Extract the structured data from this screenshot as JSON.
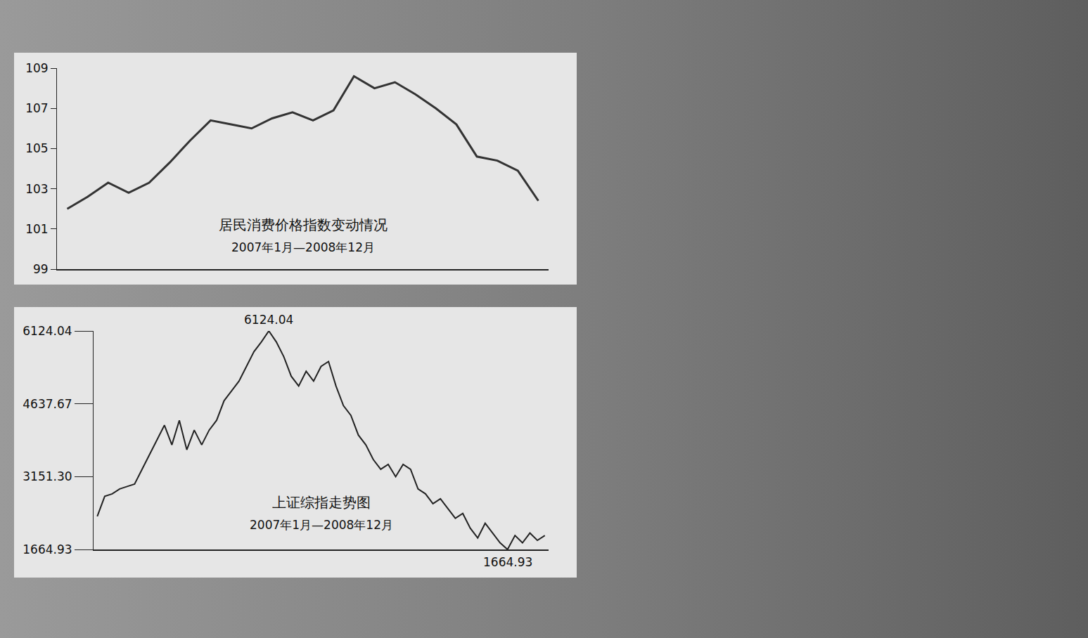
{
  "chart_data": [
    {
      "type": "line",
      "title": "居民消费价格指数变动情况",
      "subtitle": "2007年1月—2008年12月",
      "categories": [
        null,
        null,
        null,
        null,
        null,
        null,
        null,
        null,
        null,
        null,
        null,
        null,
        null,
        null,
        null,
        null,
        null,
        null,
        null,
        null,
        null,
        null,
        null,
        null
      ],
      "values": [
        102.0,
        102.6,
        103.3,
        102.8,
        103.3,
        104.3,
        105.4,
        106.4,
        106.2,
        106.0,
        106.5,
        106.8,
        106.4,
        106.9,
        108.6,
        108.0,
        108.3,
        107.7,
        107.0,
        106.2,
        104.6,
        104.4,
        103.9,
        102.4
      ],
      "color": "#333333",
      "ylim": [
        99,
        109
      ],
      "yticks": [
        99,
        101,
        103,
        105,
        107,
        109
      ],
      "grid": false,
      "tick_labels": "y"
    },
    {
      "type": "line",
      "title": "上证综指走势图",
      "subtitle": "2007年1月—2008年12月",
      "categories": [
        null,
        null,
        null,
        null,
        null,
        null,
        null,
        null,
        null,
        null,
        null,
        null,
        null,
        null,
        null,
        null,
        null,
        null,
        null,
        null,
        null,
        null,
        null,
        null,
        null,
        null,
        null,
        null,
        null,
        null,
        null,
        null,
        null,
        null,
        null,
        null,
        null,
        null,
        null,
        null,
        null,
        null,
        null,
        null,
        null,
        null,
        null,
        null,
        null,
        null,
        null,
        null,
        null,
        null,
        null,
        null,
        null,
        null,
        null,
        null,
        null
      ],
      "values": [
        2340,
        2750,
        2800,
        2900,
        2950,
        3000,
        3300,
        3600,
        3900,
        4200,
        3800,
        4300,
        3700,
        4100,
        3800,
        4100,
        4300,
        4700,
        4900,
        5100,
        5400,
        5700,
        5900,
        6124.04,
        5900,
        5600,
        5200,
        5000,
        5300,
        5100,
        5400,
        5500,
        5000,
        4600,
        4400,
        4000,
        3800,
        3500,
        3300,
        3400,
        3150,
        3400,
        3300,
        2900,
        2800,
        2600,
        2700,
        2500,
        2300,
        2400,
        2100,
        1900,
        2200,
        2000,
        1800,
        1664.93,
        1950,
        1800,
        2000,
        1850,
        1950
      ],
      "color": "#222222",
      "ylim": [
        1664.93,
        6124.04
      ],
      "yticks": [
        1664.93,
        {
          "value": 3151.3,
          "label": "3151.30"
        },
        4637.67,
        6124.04
      ],
      "grid": false,
      "tick_labels": "y",
      "annotations": [
        {
          "text": "6124.04",
          "value": 6124.04
        },
        {
          "text": "1664.93",
          "value": 1664.93
        }
      ]
    }
  ]
}
